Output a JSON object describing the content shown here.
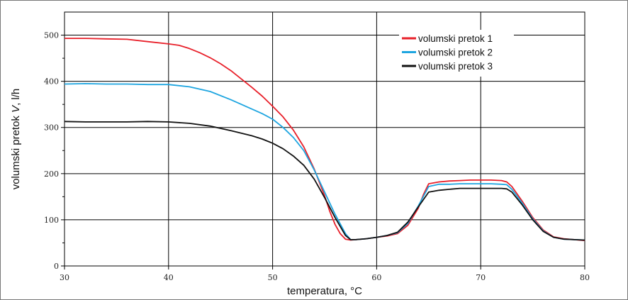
{
  "chart_data": {
    "type": "line",
    "xlabel": "temperatura, °C",
    "ylabel_parts": [
      "volumski pretok ",
      "V",
      ", l/h"
    ],
    "xlim": [
      30,
      80
    ],
    "ylim": [
      0,
      550
    ],
    "x_ticks": [
      30,
      40,
      50,
      60,
      70,
      80
    ],
    "y_ticks": [
      0,
      100,
      200,
      300,
      400,
      500
    ],
    "grid": true,
    "legend_position": "top-right",
    "series": [
      {
        "name": "volumski pretok 1",
        "color": "#e8202a",
        "points": [
          [
            30,
            493
          ],
          [
            32,
            493
          ],
          [
            34,
            492
          ],
          [
            36,
            491
          ],
          [
            38,
            486
          ],
          [
            40,
            481
          ],
          [
            41,
            478
          ],
          [
            42,
            471
          ],
          [
            43,
            462
          ],
          [
            44,
            451
          ],
          [
            45,
            438
          ],
          [
            46,
            423
          ],
          [
            47,
            405
          ],
          [
            48,
            387
          ],
          [
            49,
            368
          ],
          [
            50,
            346
          ],
          [
            51,
            323
          ],
          [
            52,
            294
          ],
          [
            53,
            258
          ],
          [
            54,
            210
          ],
          [
            55,
            152
          ],
          [
            55.5,
            118
          ],
          [
            56,
            90
          ],
          [
            56.5,
            70
          ],
          [
            57,
            58
          ],
          [
            57.5,
            56
          ],
          [
            58,
            57
          ],
          [
            59,
            59
          ],
          [
            60,
            62
          ],
          [
            61,
            65
          ],
          [
            62,
            70
          ],
          [
            63,
            88
          ],
          [
            64,
            125
          ],
          [
            64.5,
            155
          ],
          [
            65,
            178
          ],
          [
            66,
            182
          ],
          [
            67,
            184
          ],
          [
            68,
            185
          ],
          [
            69,
            186
          ],
          [
            70,
            186
          ],
          [
            71,
            186
          ],
          [
            72,
            185
          ],
          [
            72.5,
            182
          ],
          [
            73,
            172
          ],
          [
            74,
            140
          ],
          [
            75,
            105
          ],
          [
            76,
            78
          ],
          [
            77,
            63
          ],
          [
            78,
            59
          ],
          [
            79,
            57
          ],
          [
            80,
            55
          ]
        ]
      },
      {
        "name": "volumski pretok 2",
        "color": "#1ea5e0",
        "points": [
          [
            30,
            394
          ],
          [
            32,
            395
          ],
          [
            34,
            394
          ],
          [
            36,
            394
          ],
          [
            38,
            393
          ],
          [
            40,
            393
          ],
          [
            42,
            388
          ],
          [
            44,
            378
          ],
          [
            46,
            360
          ],
          [
            48,
            340
          ],
          [
            49,
            330
          ],
          [
            50,
            318
          ],
          [
            51,
            300
          ],
          [
            52,
            278
          ],
          [
            53,
            250
          ],
          [
            54,
            208
          ],
          [
            55,
            160
          ],
          [
            56,
            112
          ],
          [
            57,
            70
          ],
          [
            57.5,
            57
          ],
          [
            58,
            57
          ],
          [
            59,
            59
          ],
          [
            60,
            62
          ],
          [
            61,
            66
          ],
          [
            62,
            72
          ],
          [
            63,
            92
          ],
          [
            64,
            130
          ],
          [
            65,
            172
          ],
          [
            66,
            177
          ],
          [
            67,
            177
          ],
          [
            68,
            178
          ],
          [
            69,
            178
          ],
          [
            70,
            178
          ],
          [
            71,
            178
          ],
          [
            72,
            177
          ],
          [
            72.5,
            176
          ],
          [
            73,
            166
          ],
          [
            74,
            136
          ],
          [
            75,
            102
          ],
          [
            76,
            76
          ],
          [
            77,
            62
          ],
          [
            78,
            58
          ],
          [
            79,
            57
          ],
          [
            80,
            56
          ]
        ]
      },
      {
        "name": "volumski pretok 3",
        "color": "#111111",
        "points": [
          [
            30,
            313
          ],
          [
            32,
            312
          ],
          [
            34,
            312
          ],
          [
            36,
            312
          ],
          [
            38,
            313
          ],
          [
            40,
            312
          ],
          [
            42,
            309
          ],
          [
            44,
            303
          ],
          [
            46,
            293
          ],
          [
            48,
            282
          ],
          [
            49,
            275
          ],
          [
            50,
            266
          ],
          [
            51,
            254
          ],
          [
            52,
            238
          ],
          [
            53,
            218
          ],
          [
            54,
            188
          ],
          [
            55,
            148
          ],
          [
            56,
            105
          ],
          [
            57,
            66
          ],
          [
            57.5,
            57
          ],
          [
            58,
            57
          ],
          [
            59,
            59
          ],
          [
            60,
            62
          ],
          [
            61,
            66
          ],
          [
            62,
            73
          ],
          [
            63,
            95
          ],
          [
            64,
            128
          ],
          [
            65,
            160
          ],
          [
            66,
            164
          ],
          [
            67,
            166
          ],
          [
            68,
            168
          ],
          [
            69,
            168
          ],
          [
            70,
            168
          ],
          [
            71,
            168
          ],
          [
            72,
            168
          ],
          [
            72.5,
            167
          ],
          [
            73,
            160
          ],
          [
            74,
            132
          ],
          [
            75,
            100
          ],
          [
            76,
            75
          ],
          [
            77,
            62
          ],
          [
            78,
            58
          ],
          [
            79,
            57
          ],
          [
            80,
            56
          ]
        ]
      }
    ]
  }
}
